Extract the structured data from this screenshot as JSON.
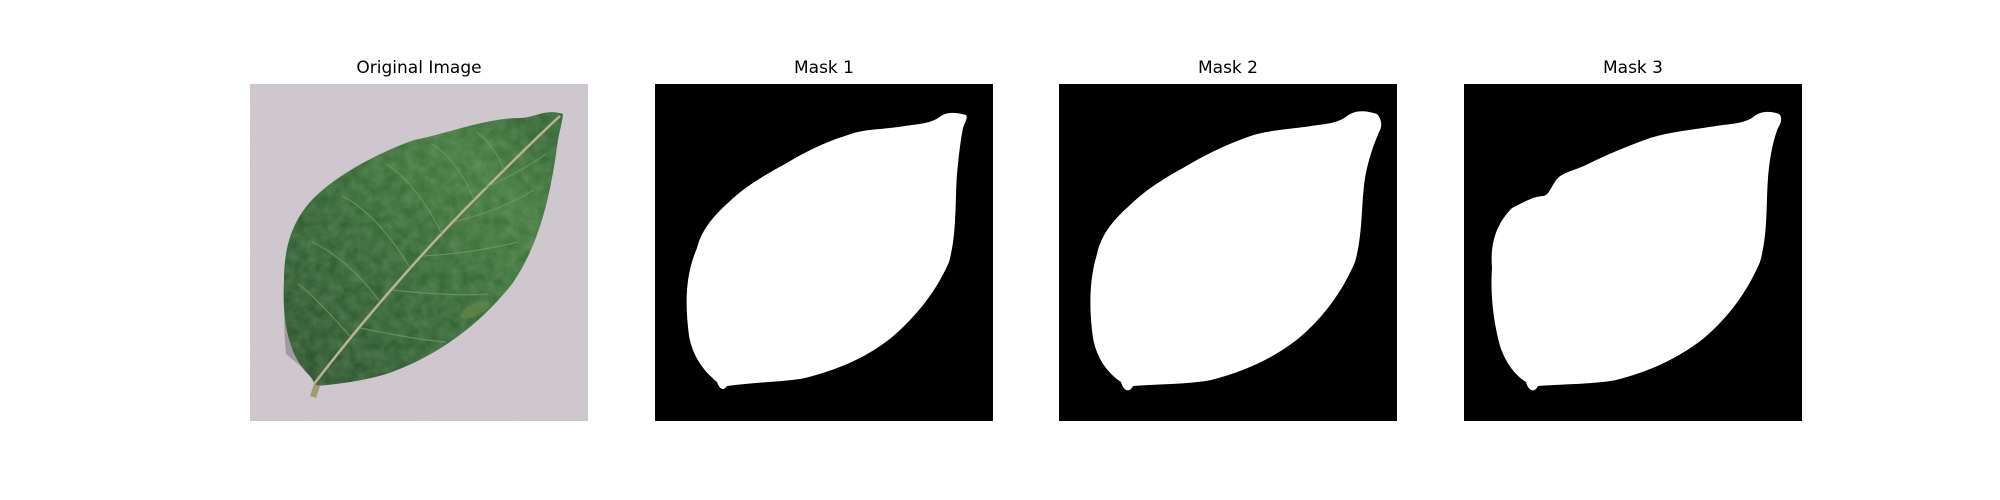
{
  "figure": {
    "panels": [
      {
        "title": "Original Image",
        "kind": "photo"
      },
      {
        "title": "Mask 1",
        "kind": "mask"
      },
      {
        "title": "Mask 2",
        "kind": "mask"
      },
      {
        "title": "Mask 3",
        "kind": "mask"
      }
    ]
  },
  "colors": {
    "mask_background": "#000000",
    "mask_foreground": "#ffffff",
    "photo_background": "#c7bfc6",
    "leaf_dark": "#1f4522",
    "leaf_mid": "#2f6130",
    "leaf_light": "#4a7f45",
    "vein": "#b9b48f"
  }
}
